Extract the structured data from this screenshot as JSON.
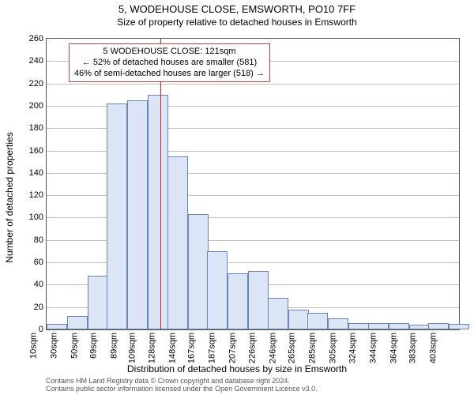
{
  "header": {
    "title": "5, WODEHOUSE CLOSE, EMSWORTH, PO10 7FF",
    "subtitle": "Size of property relative to detached houses in Emsworth"
  },
  "axes": {
    "ylabel": "Number of detached properties",
    "xlabel": "Distribution of detached houses by size in Emsworth",
    "ymax": 260,
    "ytick_step": 20,
    "yticks": [
      0,
      20,
      40,
      60,
      80,
      100,
      120,
      140,
      160,
      180,
      200,
      220,
      240,
      260
    ]
  },
  "footer": {
    "line1": "Contains HM Land Registry data © Crown copyright and database right 2024.",
    "line2": "Contains public sector information licensed under the Open Government Licence v3.0."
  },
  "style": {
    "bar_fill": "#dbe5f5",
    "bar_border": "#6a84b7",
    "grid_color": "#bfbfbf",
    "ref_line_color": "#d02020",
    "annot_border": "#c04040",
    "background": "#ffffff"
  },
  "reference": {
    "value_sqm": 121,
    "annot_line1": "5 WODEHOUSE CLOSE: 121sqm",
    "annot_line2": "← 52% of detached houses are smaller (581)",
    "annot_line3": "46% of semi-detached houses are larger (518) →"
  },
  "chart": {
    "type": "histogram",
    "xmin": 10,
    "xmax": 413,
    "bin_width_sqm": 20,
    "bars": [
      {
        "label": "10sqm",
        "x": 10,
        "value": 5
      },
      {
        "label": "30sqm",
        "x": 30,
        "value": 12
      },
      {
        "label": "50sqm",
        "x": 50,
        "value": 48
      },
      {
        "label": "69sqm",
        "x": 69,
        "value": 202
      },
      {
        "label": "89sqm",
        "x": 89,
        "value": 205
      },
      {
        "label": "109sqm",
        "x": 109,
        "value": 210
      },
      {
        "label": "128sqm",
        "x": 128,
        "value": 155
      },
      {
        "label": "148sqm",
        "x": 148,
        "value": 103
      },
      {
        "label": "167sqm",
        "x": 167,
        "value": 70
      },
      {
        "label": "187sqm",
        "x": 187,
        "value": 50
      },
      {
        "label": "207sqm",
        "x": 207,
        "value": 52
      },
      {
        "label": "226sqm",
        "x": 226,
        "value": 28
      },
      {
        "label": "246sqm",
        "x": 246,
        "value": 18
      },
      {
        "label": "265sqm",
        "x": 265,
        "value": 15
      },
      {
        "label": "285sqm",
        "x": 285,
        "value": 10
      },
      {
        "label": "305sqm",
        "x": 305,
        "value": 6
      },
      {
        "label": "324sqm",
        "x": 324,
        "value": 6
      },
      {
        "label": "344sqm",
        "x": 344,
        "value": 6
      },
      {
        "label": "364sqm",
        "x": 364,
        "value": 4
      },
      {
        "label": "383sqm",
        "x": 383,
        "value": 6
      },
      {
        "label": "403sqm",
        "x": 403,
        "value": 5
      }
    ]
  }
}
